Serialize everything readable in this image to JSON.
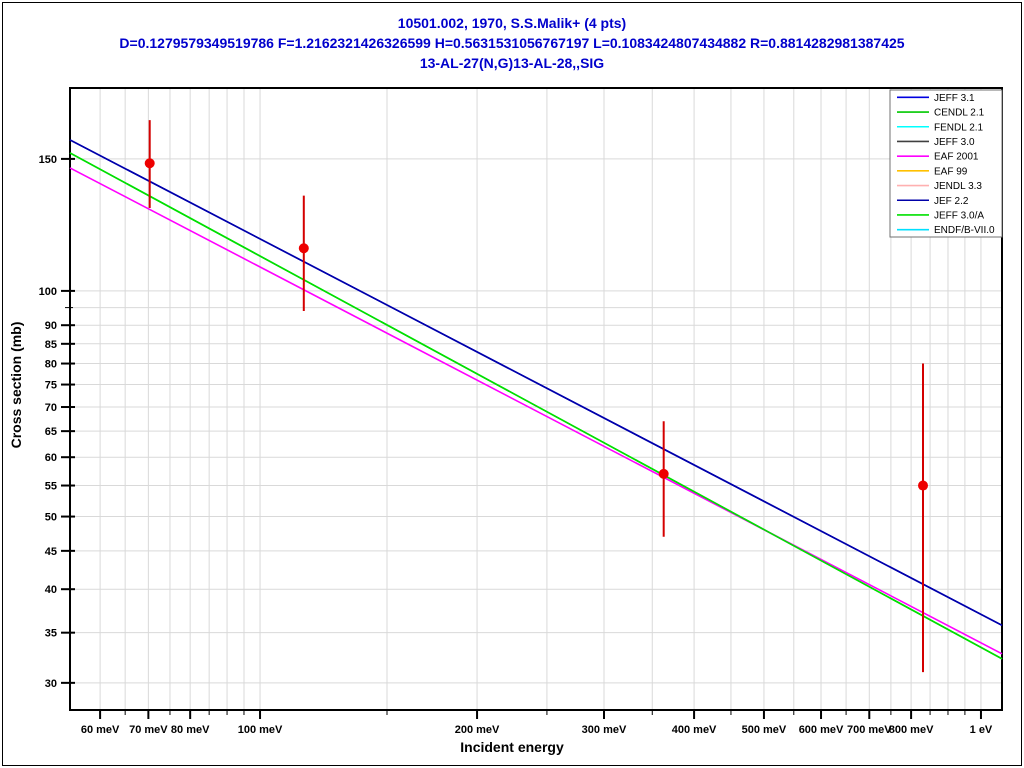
{
  "window": {
    "background": "#FFFFFF",
    "frame_color": "#000000"
  },
  "header": {
    "color": "#0000CC",
    "line1": "10501.002, 1970, S.S.Malik+ (4 pts)",
    "line2": "D=0.1279579349519786 F=1.2162321426326599 H=0.5631531056767197 L=0.1083424807434882 R=0.8814282981387425",
    "line3": "13-AL-27(N,G)13-AL-28,,SIG"
  },
  "chart_data": {
    "type": "line",
    "title": "13-AL-27(N,G)13-AL-28,,SIG",
    "xlabel": "Incident energy",
    "ylabel": "Cross section (mb)",
    "x_scale": "log",
    "y_scale": "log",
    "x_unit": "meV",
    "y_unit": "mb",
    "x_range_meV": [
      54.5,
      1069.5
    ],
    "y_range_mb": [
      27.6,
      186.5
    ],
    "grid": true,
    "grid_color": "#D9D9D9",
    "axis_color": "#000000",
    "x_ticks_major": [
      {
        "value_meV": 60,
        "label": "60 meV"
      },
      {
        "value_meV": 70,
        "label": "70 meV"
      },
      {
        "value_meV": 80,
        "label": "80 meV"
      },
      {
        "value_meV": 100,
        "label": "100 meV"
      },
      {
        "value_meV": 200,
        "label": "200 meV"
      },
      {
        "value_meV": 300,
        "label": "300 meV"
      },
      {
        "value_meV": 400,
        "label": "400 meV"
      },
      {
        "value_meV": 500,
        "label": "500 meV"
      },
      {
        "value_meV": 600,
        "label": "600 meV"
      },
      {
        "value_meV": 700,
        "label": "700 meV"
      },
      {
        "value_meV": 800,
        "label": "800 meV"
      },
      {
        "value_meV": 1000,
        "label": "1 eV"
      }
    ],
    "x_ticks_minor": [
      65,
      75,
      85,
      90,
      95,
      150,
      250,
      350,
      450,
      550,
      650,
      750,
      850,
      900,
      950
    ],
    "y_ticks_labeled": [
      150,
      100,
      90,
      85,
      80,
      75,
      70,
      65,
      60,
      55,
      50,
      45,
      40,
      35,
      30
    ],
    "y_ticks_minor": [
      95
    ],
    "evaluated_curves": [
      {
        "name": "JEFF 3.1",
        "color": "#0000E0",
        "points_meV_mb": [
          [
            54.5,
            159.0
          ],
          [
            1069.5,
            35.8
          ]
        ]
      },
      {
        "name": "CENDL 2.1",
        "color": "#00C800",
        "points_meV_mb": [
          [
            54.5,
            152.8
          ],
          [
            1069.5,
            32.3
          ]
        ]
      },
      {
        "name": "FENDL 2.1",
        "color": "#00FFFF",
        "visible": false
      },
      {
        "name": "JEFF 3.0",
        "color": "#404040",
        "visible": false
      },
      {
        "name": "EAF 2001",
        "color": "#FF00FF",
        "points_meV_mb": [
          [
            54.5,
            145.9
          ],
          [
            1069.5,
            32.8
          ]
        ]
      },
      {
        "name": "EAF 99",
        "color": "#FFC000",
        "visible": false
      },
      {
        "name": "JENDL 3.3",
        "color": "#FFB0B0",
        "visible": false
      },
      {
        "name": "JEF 2.2",
        "color": "#0000A8",
        "points_meV_mb": [
          [
            54.5,
            159.0
          ],
          [
            1069.5,
            35.8
          ]
        ]
      },
      {
        "name": "JEFF 3.0/A",
        "color": "#00E000",
        "points_meV_mb": [
          [
            54.5,
            152.8
          ],
          [
            1069.5,
            32.3
          ]
        ]
      },
      {
        "name": "ENDF/B-VII.0",
        "color": "#00E0FF",
        "visible": false
      }
    ],
    "experimental": {
      "name": "10501.002, 1970, S.S.Malik+",
      "marker_color": "#EE0000",
      "errorbar_color": "#D40000",
      "points": [
        {
          "E_meV": 70.3,
          "xs_mb": 148,
          "xs_low_mb": 129,
          "xs_high_mb": 169
        },
        {
          "E_meV": 115,
          "xs_mb": 114,
          "xs_low_mb": 94,
          "xs_high_mb": 134
        },
        {
          "E_meV": 363,
          "xs_mb": 57,
          "xs_low_mb": 47,
          "xs_high_mb": 67
        },
        {
          "E_meV": 831,
          "xs_mb": 55,
          "xs_low_mb": 31,
          "xs_high_mb": 80
        }
      ]
    },
    "legend": {
      "position": "top-right",
      "border_color": "#707070",
      "background": "#FFFFFF",
      "entries": [
        {
          "label": "JEFF 3.1",
          "color": "#0000E0"
        },
        {
          "label": "CENDL 2.1",
          "color": "#00C800"
        },
        {
          "label": "FENDL 2.1",
          "color": "#00FFFF"
        },
        {
          "label": "JEFF 3.0",
          "color": "#404040"
        },
        {
          "label": "EAF 2001",
          "color": "#FF00FF"
        },
        {
          "label": "EAF 99",
          "color": "#FFC000"
        },
        {
          "label": "JENDL 3.3",
          "color": "#FFB0B0"
        },
        {
          "label": "JEF 2.2",
          "color": "#0000A8"
        },
        {
          "label": "JEFF 3.0/A",
          "color": "#00E000"
        },
        {
          "label": "ENDF/B-VII.0",
          "color": "#00E0FF"
        }
      ]
    }
  }
}
